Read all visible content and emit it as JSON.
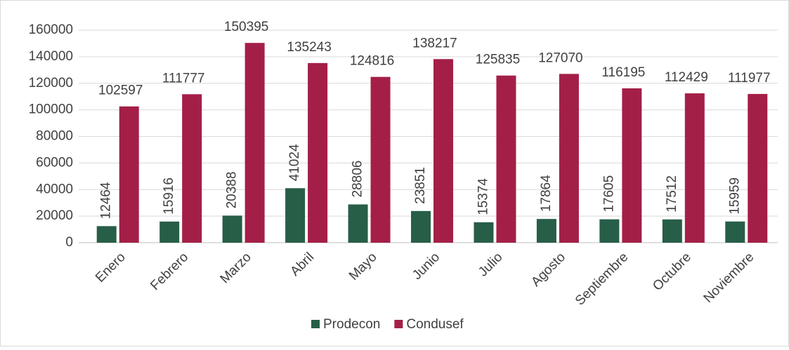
{
  "chart_data": {
    "type": "bar",
    "categories": [
      "Enero",
      "Febrero",
      "Marzo",
      "Abril",
      "Mayo",
      "Junio",
      "Julio",
      "Agosto",
      "Septiembre",
      "Octubre",
      "Noviembre"
    ],
    "series": [
      {
        "name": "Prodecon",
        "color": "#275e48",
        "values": [
          12464,
          15916,
          20388,
          41024,
          28806,
          23851,
          15374,
          17864,
          17605,
          17512,
          15959
        ]
      },
      {
        "name": "Condusef",
        "color": "#a41f47",
        "values": [
          102597,
          111777,
          150395,
          135243,
          124816,
          138217,
          125835,
          127070,
          116195,
          112429,
          111977
        ]
      }
    ],
    "ylim": [
      0,
      160000
    ],
    "yticks": [
      0,
      20000,
      40000,
      60000,
      80000,
      100000,
      120000,
      140000,
      160000
    ],
    "grid": true,
    "legend": "bottom"
  }
}
